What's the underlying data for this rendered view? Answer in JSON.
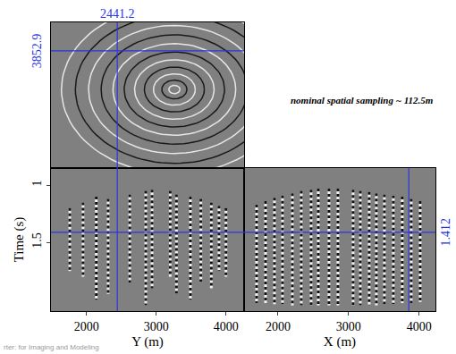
{
  "chart_data": [
    {
      "type": "rings",
      "tick_labels": false,
      "xlim": [
        1490,
        4260
      ],
      "ylim": [
        1600,
        4400
      ],
      "center": {
        "x": 3260,
        "y": 3110
      },
      "rings": [
        80,
        180,
        300,
        430,
        570,
        720,
        880,
        1050,
        1230,
        1420,
        1620
      ],
      "colors": [
        "#e6e6e6",
        "#1a1a1a",
        "#e6e6e6",
        "#1a1a1a",
        "#e6e6e6",
        "#1a1a1a",
        "#e6e6e6",
        "#1a1a1a",
        "#e6e6e6",
        "#1a1a1a",
        "#e6e6e6"
      ],
      "crosshair": {
        "x": 2441.2,
        "y": 3852.9,
        "color": "#2a35e0"
      }
    },
    {
      "type": "traces",
      "tick_labels": true,
      "line_style": "dot",
      "color": "#111111",
      "x_label": "Y (m)",
      "y_label": "Time (s)",
      "xlim": [
        1490,
        4260
      ],
      "xticks": [
        2000,
        3000,
        4000
      ],
      "ylim": [
        2.1,
        0.85
      ],
      "yticks": [
        1,
        1.5
      ],
      "x": [
        1760,
        1950,
        2140,
        2310,
        2620,
        2850,
        2940,
        3200,
        3290,
        3490,
        3640,
        3790,
        3900,
        4000
      ],
      "t_start": [
        1.2,
        1.15,
        1.1,
        1.12,
        1.08,
        1.05,
        1.04,
        1.05,
        1.08,
        1.1,
        1.12,
        1.15,
        1.18,
        1.2
      ],
      "t_end": [
        1.75,
        1.8,
        2.0,
        1.95,
        1.85,
        2.05,
        1.9,
        1.8,
        1.95,
        2.0,
        1.85,
        1.9,
        1.75,
        1.8
      ],
      "crosshair": {
        "x": 2441.2,
        "y": 1.412,
        "color": "#2a35e0"
      }
    },
    {
      "type": "traces",
      "tick_labels": "x",
      "line_style": "dot",
      "color": "#111111",
      "x_label": "X (m)",
      "xlim": [
        1520,
        4230
      ],
      "xticks": [
        2000,
        3000,
        4000
      ],
      "ylim": [
        2.1,
        0.85
      ],
      "x": [
        1697,
        1824,
        1950,
        2064,
        2204,
        2330,
        2469,
        2571,
        2722,
        2849,
        3064,
        3166,
        3292,
        3393,
        3507,
        3634,
        3760,
        3887,
        4014
      ],
      "t_start": [
        1.17,
        1.14,
        1.11,
        1.09,
        1.07,
        1.05,
        1.04,
        1.03,
        1.03,
        1.03,
        1.04,
        1.05,
        1.06,
        1.07,
        1.08,
        1.09,
        1.1,
        1.12,
        1.14
      ],
      "t_end": [
        2.03,
        2.03,
        2.04,
        2.04,
        2.05,
        2.05,
        2.05,
        2.05,
        2.05,
        2.05,
        2.05,
        2.05,
        2.05,
        2.05,
        2.04,
        2.04,
        2.03,
        2.03,
        2.02
      ],
      "crosshair": {
        "x": 3852.9,
        "y": 1.412,
        "color": "#2a35e0"
      }
    }
  ],
  "annotation": "nominal spatial sampling ~ 112.5m",
  "footer": "rter: for Imaging and Modeling"
}
